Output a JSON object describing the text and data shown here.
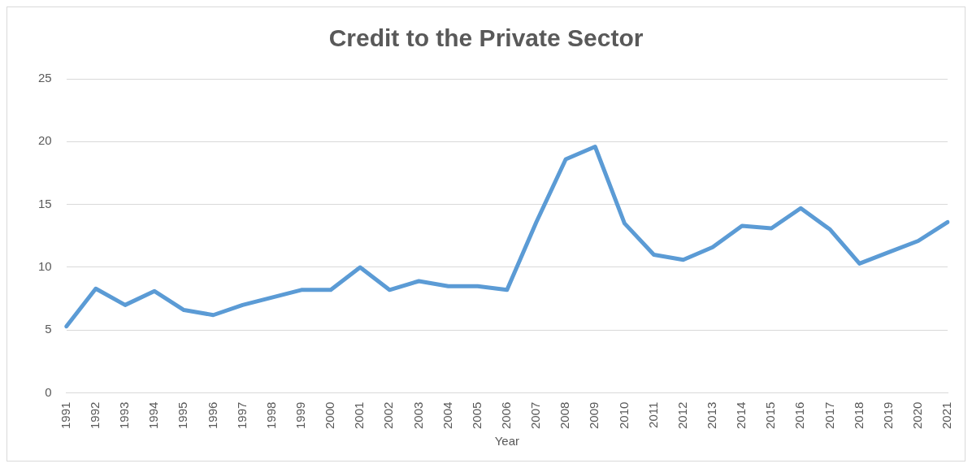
{
  "chart_data": {
    "type": "line",
    "title": "Credit to the Private Sector",
    "xlabel": "Year",
    "categories": [
      "1991",
      "1992",
      "1993",
      "1994",
      "1995",
      "1996",
      "1997",
      "1998",
      "1999",
      "2000",
      "2001",
      "2002",
      "2003",
      "2004",
      "2005",
      "2006",
      "2007",
      "2008",
      "2009",
      "2010",
      "2011",
      "2012",
      "2013",
      "2014",
      "2015",
      "2016",
      "2017",
      "2018",
      "2019",
      "2020",
      "2021"
    ],
    "series": [
      {
        "color": "#5b9bd5",
        "values": [
          5.3,
          8.3,
          7.0,
          8.1,
          6.6,
          6.2,
          7.0,
          7.6,
          8.2,
          8.2,
          10.0,
          8.2,
          8.9,
          8.5,
          8.5,
          8.2,
          13.6,
          18.6,
          19.6,
          13.5,
          11.0,
          10.6,
          11.6,
          13.3,
          13.1,
          14.7,
          13.0,
          10.3,
          11.2,
          12.1,
          13.6
        ]
      }
    ],
    "ylim": [
      0,
      25
    ],
    "yticks": [
      0,
      5,
      10,
      15,
      20,
      25
    ],
    "grid": "y",
    "legend": false,
    "marker": "none",
    "line_style": "solid"
  }
}
